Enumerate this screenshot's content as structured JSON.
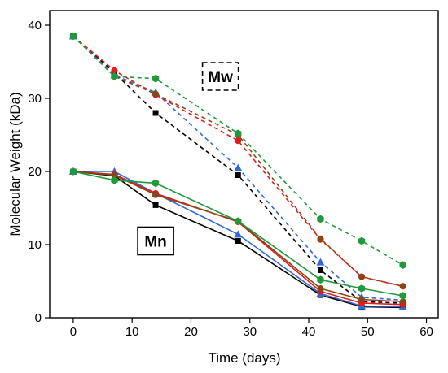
{
  "chart_data": {
    "type": "line",
    "title": "",
    "xlabel": "Time (days)",
    "ylabel": "Molecular Weight (kDa)",
    "xlim": [
      -4,
      62
    ],
    "ylim": [
      0,
      42
    ],
    "xticks": [
      0,
      10,
      20,
      30,
      40,
      50,
      60
    ],
    "yticks": [
      0,
      10,
      20,
      30,
      40
    ],
    "grid": false,
    "legend": "none",
    "annotations": [
      {
        "text": "Mw",
        "x": 25,
        "y": 33,
        "box": "dashed"
      },
      {
        "text": "Mn",
        "x": 14,
        "y": 10.5,
        "box": "solid"
      }
    ],
    "series": [
      {
        "group": "Mw",
        "color": "#000000",
        "marker": "square",
        "dashed": true,
        "x": [
          0,
          7,
          14,
          28,
          42,
          49,
          56
        ],
        "y": [
          38.5,
          33.5,
          28.0,
          19.5,
          6.5,
          2.2,
          2.0
        ]
      },
      {
        "group": "Mw",
        "color": "#2e6bd6",
        "marker": "triangle",
        "dashed": true,
        "x": [
          0,
          7,
          14,
          28,
          42,
          49,
          56
        ],
        "y": [
          38.5,
          33.2,
          30.8,
          20.5,
          7.6,
          2.8,
          2.4
        ]
      },
      {
        "group": "Mw",
        "color": "#e41a1c",
        "marker": "circle",
        "dashed": true,
        "x": [
          0,
          7,
          14,
          28,
          42,
          49,
          56
        ],
        "y": [
          38.5,
          33.8,
          30.5,
          24.2,
          10.7,
          5.6,
          4.3
        ]
      },
      {
        "group": "Mw",
        "color": "#8b4513",
        "marker": "circle",
        "dashed": true,
        "x": [
          0,
          7,
          14,
          28,
          42,
          49,
          56
        ],
        "y": [
          38.5,
          33.0,
          30.6,
          25.0,
          10.8,
          5.6,
          4.3
        ]
      },
      {
        "group": "Mw",
        "color": "#1e9a3a",
        "marker": "hexagon",
        "dashed": true,
        "x": [
          0,
          7,
          14,
          28,
          42,
          49,
          56
        ],
        "y": [
          38.5,
          33.0,
          32.7,
          25.2,
          13.5,
          10.5,
          7.2
        ]
      },
      {
        "group": "Mn",
        "color": "#000000",
        "marker": "square",
        "dashed": false,
        "x": [
          0,
          7,
          14,
          28,
          42,
          49,
          56
        ],
        "y": [
          20.0,
          19.4,
          15.4,
          10.5,
          3.1,
          1.5,
          1.4
        ]
      },
      {
        "group": "Mn",
        "color": "#2e6bd6",
        "marker": "triangle",
        "dashed": false,
        "x": [
          0,
          7,
          14,
          28,
          42,
          49,
          56
        ],
        "y": [
          20.0,
          20.0,
          17.0,
          11.4,
          3.3,
          1.6,
          1.5
        ]
      },
      {
        "group": "Mn",
        "color": "#e41a1c",
        "marker": "circle",
        "dashed": false,
        "x": [
          0,
          7,
          14,
          28,
          42,
          49,
          56
        ],
        "y": [
          20.0,
          19.6,
          17.0,
          13.1,
          3.6,
          2.0,
          1.8
        ]
      },
      {
        "group": "Mn",
        "color": "#8b4513",
        "marker": "circle",
        "dashed": false,
        "x": [
          0,
          7,
          14,
          28,
          42,
          49,
          56
        ],
        "y": [
          20.0,
          19.5,
          16.8,
          13.2,
          4.0,
          2.5,
          2.2
        ]
      },
      {
        "group": "Mn",
        "color": "#1e9a3a",
        "marker": "hexagon",
        "dashed": false,
        "x": [
          0,
          7,
          14,
          28,
          42,
          49,
          56
        ],
        "y": [
          20.0,
          18.8,
          18.4,
          13.2,
          5.2,
          4.0,
          3.0
        ]
      }
    ]
  }
}
